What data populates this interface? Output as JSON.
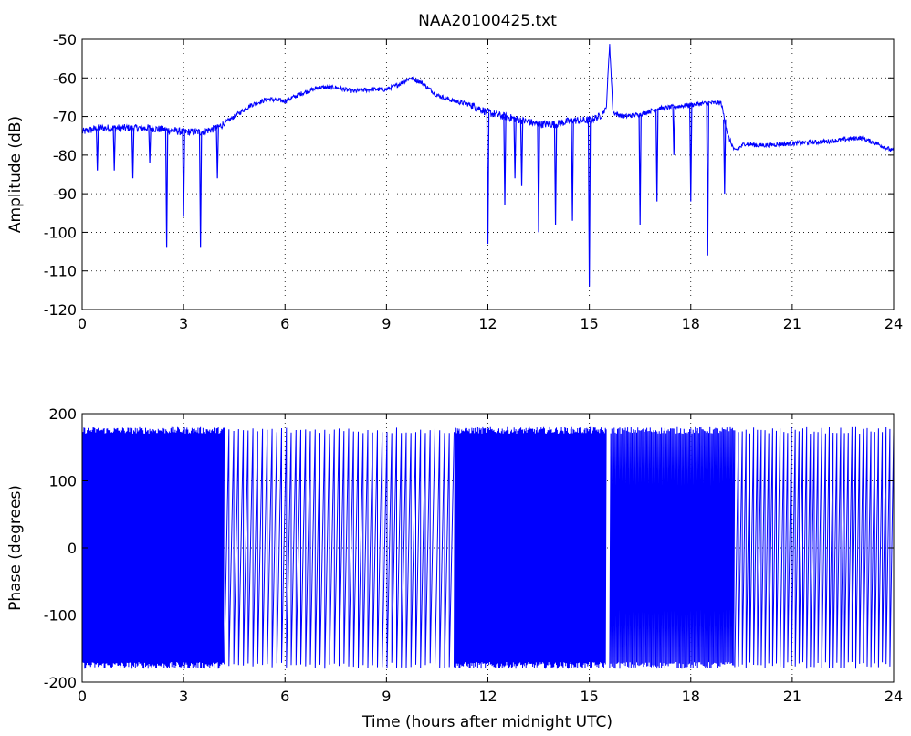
{
  "chart_data": [
    {
      "type": "line",
      "title": "NAA20100425.txt",
      "xlabel": "",
      "ylabel": "Amplitude (dB)",
      "xlim": [
        0,
        24
      ],
      "ylim": [
        -120,
        -50
      ],
      "xticks": [
        0,
        3,
        6,
        9,
        12,
        15,
        18,
        21,
        24
      ],
      "yticks": [
        -50,
        -60,
        -70,
        -80,
        -90,
        -100,
        -110,
        -120
      ],
      "grid": "dotted",
      "color": "#0000ff",
      "series": [
        {
          "x": [
            0,
            0.5,
            1,
            1.5,
            2,
            2.5,
            3,
            3.5,
            4,
            4.5,
            5,
            5.5,
            6,
            6.5,
            7,
            7.5,
            8,
            8.5,
            9,
            9.3,
            9.7,
            10,
            10.5,
            11,
            11.5,
            12,
            12.5,
            13,
            13.5,
            14,
            14.5,
            15,
            15.3,
            15.5,
            15.6,
            15.7,
            16,
            16.5,
            17,
            17.5,
            18,
            18.5,
            18.9,
            19.1,
            19.3,
            19.6,
            20,
            21,
            22,
            23,
            23.5,
            24
          ],
          "y": [
            -74,
            -73,
            -73,
            -73,
            -73,
            -73.5,
            -74,
            -74,
            -73,
            -70,
            -67,
            -65.5,
            -66,
            -64,
            -62.5,
            -62.5,
            -63.5,
            -63,
            -63,
            -62,
            -60,
            -61,
            -64.5,
            -66,
            -67,
            -69,
            -70,
            -71,
            -72,
            -72,
            -71,
            -71,
            -70,
            -68,
            -51,
            -69,
            -70,
            -69.5,
            -68,
            -67.5,
            -67,
            -66.5,
            -66.5,
            -75,
            -79,
            -77,
            -77.5,
            -77,
            -76.5,
            -75.5,
            -77,
            -79
          ],
          "dips": [
            {
              "x": 0.45,
              "y": -84
            },
            {
              "x": 0.95,
              "y": -84
            },
            {
              "x": 1.5,
              "y": -86
            },
            {
              "x": 2.0,
              "y": -82
            },
            {
              "x": 2.5,
              "y": -104
            },
            {
              "x": 3.0,
              "y": -96
            },
            {
              "x": 3.5,
              "y": -104
            },
            {
              "x": 4.0,
              "y": -86
            },
            {
              "x": 12.0,
              "y": -103
            },
            {
              "x": 12.5,
              "y": -93
            },
            {
              "x": 12.8,
              "y": -86
            },
            {
              "x": 13.0,
              "y": -88
            },
            {
              "x": 13.5,
              "y": -100
            },
            {
              "x": 14.0,
              "y": -98
            },
            {
              "x": 14.5,
              "y": -97
            },
            {
              "x": 15.0,
              "y": -114
            },
            {
              "x": 16.5,
              "y": -98
            },
            {
              "x": 17.0,
              "y": -92
            },
            {
              "x": 17.5,
              "y": -80
            },
            {
              "x": 18.0,
              "y": -92
            },
            {
              "x": 18.5,
              "y": -106
            },
            {
              "x": 19.0,
              "y": -90
            }
          ]
        }
      ]
    },
    {
      "type": "line",
      "title": "",
      "xlabel": "Time (hours after midnight UTC)",
      "ylabel": "Phase (degrees)",
      "xlim": [
        0,
        24
      ],
      "ylim": [
        -200,
        200
      ],
      "xticks": [
        0,
        3,
        6,
        9,
        12,
        15,
        18,
        21,
        24
      ],
      "yticks": [
        200,
        100,
        0,
        -100,
        -200
      ],
      "grid": "dotted",
      "color": "#0000ff",
      "series": [
        {
          "phase_range": [
            -180,
            180
          ],
          "sawtooth_cycles_per_hour": [
            {
              "from": 0,
              "to": 4.2,
              "cycles_per_hour": 40
            },
            {
              "from": 4.2,
              "to": 11.0,
              "cycles_per_hour": 7
            },
            {
              "from": 11.0,
              "to": 15.5,
              "cycles_per_hour": 40
            },
            {
              "from": 15.6,
              "to": 19.3,
              "cycles_per_hour": 30
            },
            {
              "from": 19.3,
              "to": 24,
              "cycles_per_hour": 9
            }
          ],
          "gap": [
            15.5,
            15.6
          ]
        }
      ]
    }
  ]
}
